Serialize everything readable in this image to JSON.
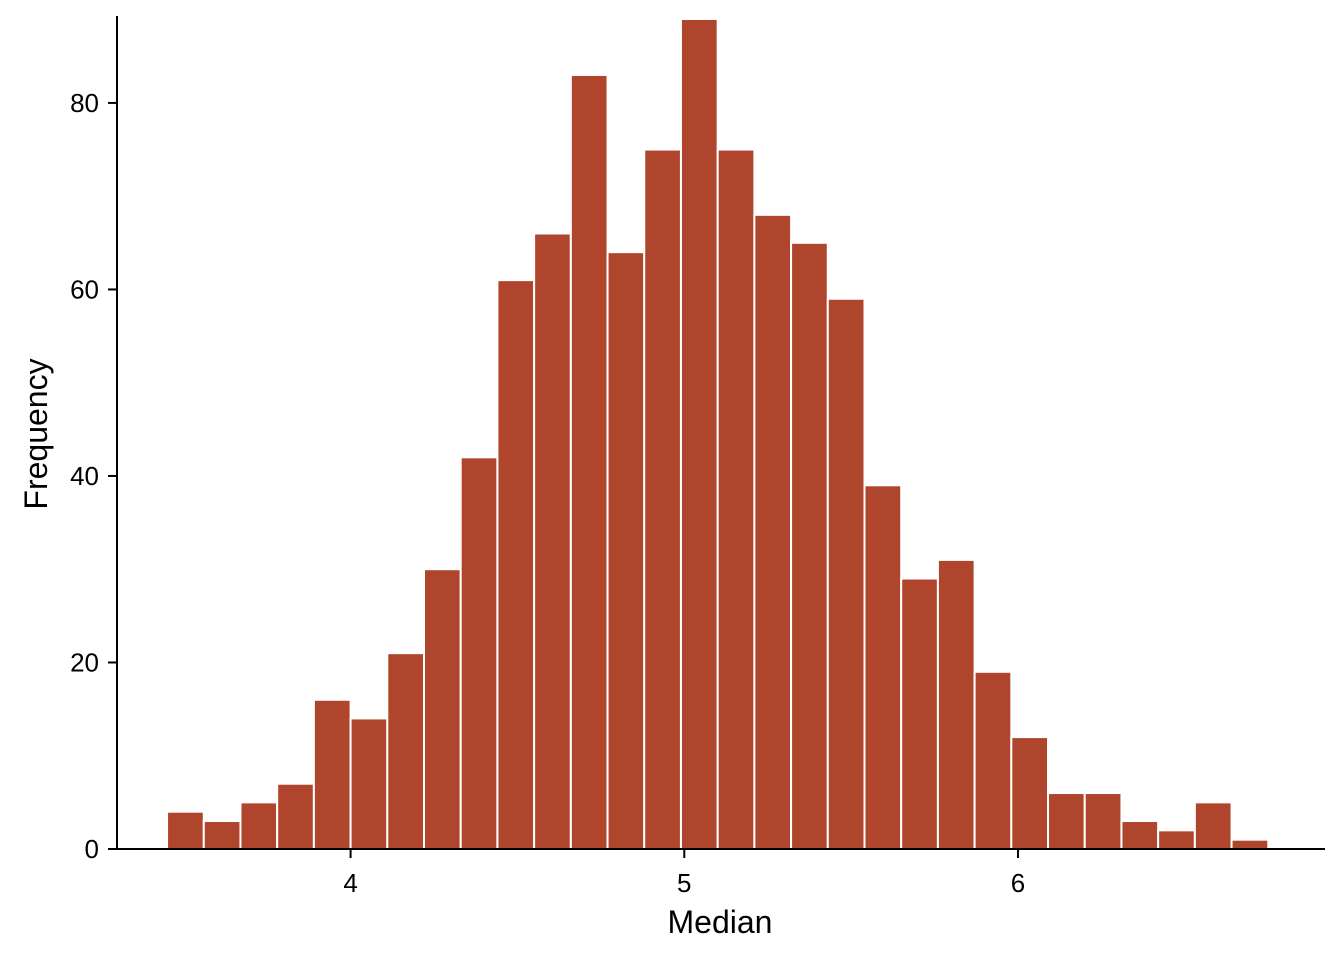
{
  "chart_data": {
    "type": "bar",
    "subtype": "histogram",
    "xlabel": "Median",
    "ylabel": "Frequency",
    "bar_color": "#B0452E",
    "bar_edge_color": "#ffffff",
    "bin_width": 0.11,
    "bins": [
      {
        "x0": 3.45,
        "x1": 3.56,
        "count": 4
      },
      {
        "x0": 3.56,
        "x1": 3.67,
        "count": 3
      },
      {
        "x0": 3.67,
        "x1": 3.78,
        "count": 5
      },
      {
        "x0": 3.78,
        "x1": 3.89,
        "count": 7
      },
      {
        "x0": 3.89,
        "x1": 4.0,
        "count": 16
      },
      {
        "x0": 4.0,
        "x1": 4.11,
        "count": 14
      },
      {
        "x0": 4.11,
        "x1": 4.22,
        "count": 21
      },
      {
        "x0": 4.22,
        "x1": 4.33,
        "count": 30
      },
      {
        "x0": 4.33,
        "x1": 4.44,
        "count": 42
      },
      {
        "x0": 4.44,
        "x1": 4.55,
        "count": 61
      },
      {
        "x0": 4.55,
        "x1": 4.66,
        "count": 66
      },
      {
        "x0": 4.66,
        "x1": 4.77,
        "count": 83
      },
      {
        "x0": 4.77,
        "x1": 4.88,
        "count": 64
      },
      {
        "x0": 4.88,
        "x1": 4.99,
        "count": 75
      },
      {
        "x0": 4.99,
        "x1": 5.1,
        "count": 89
      },
      {
        "x0": 5.1,
        "x1": 5.21,
        "count": 75
      },
      {
        "x0": 5.21,
        "x1": 5.32,
        "count": 68
      },
      {
        "x0": 5.32,
        "x1": 5.43,
        "count": 65
      },
      {
        "x0": 5.43,
        "x1": 5.54,
        "count": 59
      },
      {
        "x0": 5.54,
        "x1": 5.65,
        "count": 39
      },
      {
        "x0": 5.65,
        "x1": 5.76,
        "count": 29
      },
      {
        "x0": 5.76,
        "x1": 5.87,
        "count": 31
      },
      {
        "x0": 5.87,
        "x1": 5.98,
        "count": 19
      },
      {
        "x0": 5.98,
        "x1": 6.09,
        "count": 12
      },
      {
        "x0": 6.09,
        "x1": 6.2,
        "count": 6
      },
      {
        "x0": 6.2,
        "x1": 6.31,
        "count": 6
      },
      {
        "x0": 6.31,
        "x1": 6.42,
        "count": 3
      },
      {
        "x0": 6.42,
        "x1": 6.53,
        "count": 2
      },
      {
        "x0": 6.53,
        "x1": 6.64,
        "count": 5
      },
      {
        "x0": 6.64,
        "x1": 6.75,
        "count": 1
      }
    ],
    "xticks": [
      4,
      5,
      6
    ],
    "xtick_labels": [
      "4",
      "5",
      "6"
    ],
    "yticks": [
      0,
      20,
      40,
      60,
      80
    ],
    "ytick_labels": [
      "0",
      "20",
      "40",
      "60",
      "80"
    ],
    "xlim": [
      3.3,
      6.92
    ],
    "ylim": [
      0,
      89
    ],
    "grid": false,
    "legend": "none"
  }
}
